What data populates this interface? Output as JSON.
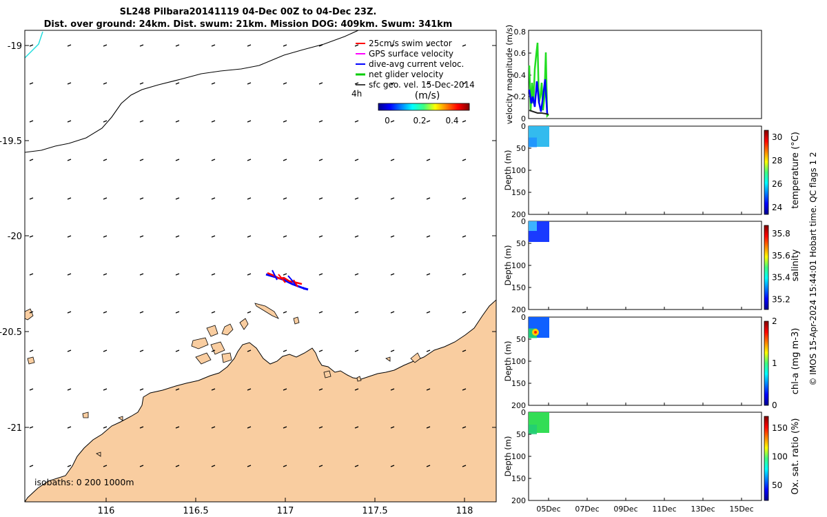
{
  "title": {
    "line1": "SL248 Pilbara20141119 04-Dec 00Z to 04-Dec 23Z.",
    "line2": "Dist. over ground: 24km. Dist. swum: 21km. Mission DOG: 409km. Swum: 341km"
  },
  "map": {
    "lat_ticks": [
      "-19",
      "-19.5",
      "-20",
      "-20.5",
      "-21"
    ],
    "lon_ticks": [
      "116",
      "116.5",
      "117",
      "117.5",
      "118"
    ],
    "isobaths_label": "isobaths: 0   200  1000m",
    "land_color": "#f9cda0",
    "legend": {
      "items": [
        {
          "label": "25cm/s swim vector",
          "color": "#ff0000"
        },
        {
          "label": "GPS surface velocity",
          "color": "#ff00ff"
        },
        {
          "label": "dive-avg current veloc.",
          "color": "#0000ff"
        },
        {
          "label": "net glider velocity",
          "color": "#00cc00"
        },
        {
          "label": "sfc geo. vel. 15-Dec-2014",
          "color": "#000000"
        }
      ],
      "subnote": "4h",
      "colorbar_title": "(m/s)",
      "colorbar_ticks": [
        "0",
        "0.2",
        "0.4"
      ]
    }
  },
  "panels": {
    "velocity": {
      "ylabel": "velocity magnitude (m/s)",
      "yticks": [
        "0",
        "0.2",
        "0.4",
        "0.6",
        "0.8"
      ]
    },
    "depth_ylabel": "Depth (m)",
    "depth_ticks": [
      "0",
      "50",
      "100",
      "150",
      "200"
    ],
    "date_ticks": [
      "05Dec",
      "07Dec",
      "09Dec",
      "11Dec",
      "13Dec",
      "15Dec"
    ],
    "colorbars": [
      {
        "label": "temperature (°C)",
        "ticks": [
          "24",
          "26",
          "28",
          "30"
        ]
      },
      {
        "label": "salinity",
        "ticks": [
          "35.2",
          "35.4",
          "35.6",
          "35.8"
        ]
      },
      {
        "label": "chl-a (mg m-3)",
        "ticks": [
          "0",
          "1",
          "2"
        ]
      },
      {
        "label": "Ox. sat. ratio (%)",
        "ticks": [
          "50",
          "100",
          "150"
        ]
      }
    ]
  },
  "footer": "© IMOS 15-Apr-2024 15:44:01 Hobart time. QC flags 1  2"
}
